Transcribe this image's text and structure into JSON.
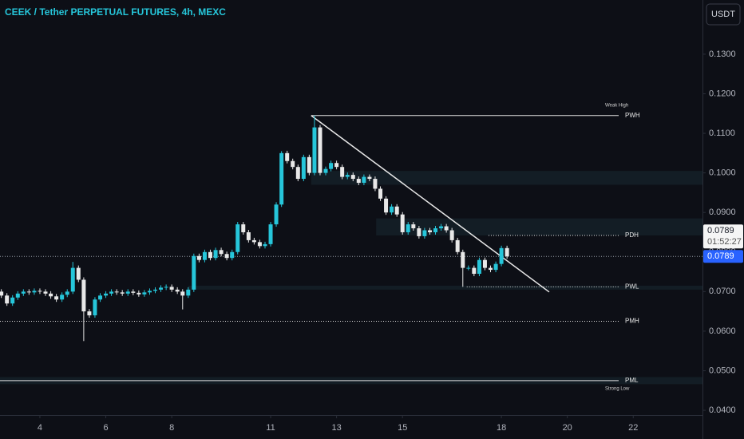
{
  "chart_data": {
    "type": "candlestick",
    "title": "CEEK / Tether PERPETUAL FUTURES, 4h, MEXC",
    "currency": "USDT",
    "up_color": "#26c6da",
    "down_color": "#e8e8e8",
    "xlim": [
      2.79,
      24.1
    ],
    "xticks": [
      4,
      6,
      8,
      11,
      13,
      15,
      18,
      20,
      22
    ],
    "ylim": [
      0.0388,
      0.1437
    ],
    "yticks": [
      {
        "value": 0.13,
        "label": "0.1300"
      },
      {
        "value": 0.12,
        "label": "0.1200"
      },
      {
        "value": 0.11,
        "label": "0.1100"
      },
      {
        "value": 0.1,
        "label": "0.1000"
      },
      {
        "value": 0.09,
        "label": "0.0900"
      },
      {
        "value": 0.08,
        "label": "0.0800"
      },
      {
        "value": 0.07,
        "label": "0.0700"
      },
      {
        "value": 0.06,
        "label": "0.0600"
      },
      {
        "value": 0.05,
        "label": "0.0500"
      },
      {
        "value": 0.04,
        "label": "0.0400"
      }
    ],
    "x": [
      2.83,
      3,
      3.17,
      3.33,
      3.5,
      3.67,
      3.83,
      4,
      4.17,
      4.33,
      4.5,
      4.67,
      4.83,
      5,
      5.17,
      5.33,
      5.5,
      5.67,
      5.83,
      6,
      6.17,
      6.33,
      6.5,
      6.67,
      6.83,
      7,
      7.17,
      7.33,
      7.5,
      7.67,
      7.83,
      8,
      8.17,
      8.33,
      8.5,
      8.67,
      8.83,
      9,
      9.17,
      9.33,
      9.5,
      9.67,
      9.83,
      10,
      10.17,
      10.33,
      10.5,
      10.67,
      10.83,
      11,
      11.17,
      11.33,
      11.5,
      11.67,
      11.83,
      12,
      12.17,
      12.33,
      12.5,
      12.67,
      12.83,
      13,
      13.17,
      13.33,
      13.5,
      13.67,
      13.83,
      14,
      14.17,
      14.33,
      14.5,
      14.67,
      14.83,
      15,
      15.17,
      15.33,
      15.5,
      15.67,
      15.83,
      16,
      16.17,
      16.33,
      16.5,
      16.67,
      16.83,
      17,
      17.17,
      17.33,
      17.5,
      17.67,
      17.83,
      18,
      18.17
    ],
    "open": [
      0.07,
      0.069,
      0.067,
      0.0685,
      0.0695,
      0.07,
      0.0698,
      0.0702,
      0.07,
      0.0695,
      0.0688,
      0.068,
      0.0692,
      0.07,
      0.076,
      0.073,
      0.065,
      0.064,
      0.068,
      0.069,
      0.0695,
      0.07,
      0.0698,
      0.0695,
      0.07,
      0.0697,
      0.0693,
      0.0698,
      0.0702,
      0.0705,
      0.071,
      0.0712,
      0.0705,
      0.07,
      0.069,
      0.0705,
      0.079,
      0.078,
      0.08,
      0.0785,
      0.0805,
      0.0795,
      0.0785,
      0.08,
      0.087,
      0.085,
      0.083,
      0.0825,
      0.0815,
      0.082,
      0.087,
      0.092,
      0.105,
      0.103,
      0.1015,
      0.0985,
      0.104,
      0.1,
      0.1115,
      0.1,
      0.101,
      0.1025,
      0.1015,
      0.099,
      0.0995,
      0.0985,
      0.0975,
      0.099,
      0.0985,
      0.096,
      0.0935,
      0.09,
      0.0915,
      0.0895,
      0.085,
      0.087,
      0.086,
      0.084,
      0.0855,
      0.085,
      0.086,
      0.0865,
      0.0855,
      0.083,
      0.08,
      0.076,
      0.076,
      0.0745,
      0.078,
      0.076,
      0.0755,
      0.077,
      0.081
    ],
    "high": [
      0.0706,
      0.0696,
      0.0691,
      0.0701,
      0.0706,
      0.0706,
      0.0708,
      0.0708,
      0.0706,
      0.0701,
      0.0694,
      0.0698,
      0.0706,
      0.0775,
      0.0766,
      0.0736,
      0.0656,
      0.0686,
      0.0696,
      0.0701,
      0.0706,
      0.0706,
      0.0704,
      0.0706,
      0.0706,
      0.0703,
      0.0704,
      0.0708,
      0.0711,
      0.0716,
      0.0718,
      0.0718,
      0.0711,
      0.0706,
      0.0711,
      0.0796,
      0.0796,
      0.0806,
      0.0806,
      0.0811,
      0.0811,
      0.0801,
      0.0806,
      0.0876,
      0.0876,
      0.0856,
      0.0836,
      0.0831,
      0.0826,
      0.0876,
      0.0926,
      0.1055,
      0.1056,
      0.1036,
      0.1021,
      0.1046,
      0.1046,
      0.1145,
      0.1121,
      0.1016,
      0.1031,
      0.1031,
      0.1021,
      0.1001,
      0.1001,
      0.0991,
      0.0996,
      0.0996,
      0.0991,
      0.0966,
      0.0941,
      0.0921,
      0.0921,
      0.0901,
      0.0876,
      0.0876,
      0.0866,
      0.0861,
      0.0861,
      0.0866,
      0.0871,
      0.0871,
      0.0861,
      0.0836,
      0.0806,
      0.0766,
      0.0766,
      0.0786,
      0.0786,
      0.0766,
      0.0776,
      0.0816,
      0.0816
    ],
    "low": [
      0.0684,
      0.0664,
      0.0664,
      0.0679,
      0.0689,
      0.0692,
      0.0692,
      0.0694,
      0.0689,
      0.0682,
      0.0674,
      0.0674,
      0.0686,
      0.0694,
      0.0724,
      0.0575,
      0.0634,
      0.0634,
      0.0674,
      0.0684,
      0.0689,
      0.0692,
      0.0689,
      0.0689,
      0.0691,
      0.0687,
      0.0687,
      0.0692,
      0.0696,
      0.0699,
      0.0704,
      0.0699,
      0.0694,
      0.0655,
      0.0684,
      0.0699,
      0.0774,
      0.0774,
      0.0779,
      0.0779,
      0.0789,
      0.0779,
      0.0779,
      0.0794,
      0.0844,
      0.0824,
      0.0819,
      0.0809,
      0.0809,
      0.0814,
      0.0864,
      0.0914,
      0.1024,
      0.1009,
      0.0979,
      0.0979,
      0.0994,
      0.0994,
      0.0994,
      0.0994,
      0.1004,
      0.1009,
      0.0984,
      0.0984,
      0.0979,
      0.0969,
      0.0969,
      0.0979,
      0.0954,
      0.0929,
      0.0894,
      0.0894,
      0.0889,
      0.0844,
      0.0844,
      0.0854,
      0.0834,
      0.0834,
      0.0844,
      0.0844,
      0.0854,
      0.0849,
      0.0824,
      0.0794,
      0.0712,
      0.0754,
      0.0739,
      0.0739,
      0.0754,
      0.0749,
      0.0749,
      0.0764,
      0.0783
    ],
    "close": [
      0.069,
      0.067,
      0.0685,
      0.0695,
      0.07,
      0.0698,
      0.0702,
      0.07,
      0.0695,
      0.0688,
      0.068,
      0.0692,
      0.07,
      0.076,
      0.073,
      0.065,
      0.064,
      0.068,
      0.069,
      0.0695,
      0.07,
      0.0698,
      0.0695,
      0.07,
      0.0697,
      0.0693,
      0.0698,
      0.0702,
      0.0705,
      0.071,
      0.0712,
      0.0705,
      0.07,
      0.069,
      0.0705,
      0.079,
      0.078,
      0.08,
      0.0785,
      0.0805,
      0.0795,
      0.0785,
      0.08,
      0.087,
      0.085,
      0.083,
      0.0825,
      0.0815,
      0.082,
      0.087,
      0.092,
      0.105,
      0.103,
      0.1015,
      0.0985,
      0.104,
      0.1,
      0.1115,
      0.1,
      0.101,
      0.1025,
      0.1015,
      0.099,
      0.0995,
      0.0985,
      0.0975,
      0.099,
      0.0985,
      0.096,
      0.0935,
      0.09,
      0.0915,
      0.0895,
      0.085,
      0.087,
      0.086,
      0.084,
      0.0855,
      0.085,
      0.086,
      0.0865,
      0.0855,
      0.083,
      0.08,
      0.076,
      0.076,
      0.0745,
      0.078,
      0.076,
      0.0755,
      0.077,
      0.081,
      0.0789
    ],
    "zones": [
      {
        "ylim": [
          0.097,
          0.1005
        ],
        "x_start": 12.23
      },
      {
        "ylim": [
          0.0842,
          0.0885
        ],
        "x_start": 14.2
      },
      {
        "ylim": [
          0.0705,
          0.0715
        ],
        "x_start": 8.5
      },
      {
        "ylim": [
          0.0466,
          0.0484
        ],
        "x_start": 2.79
      }
    ],
    "levels": [
      {
        "name": "PWH",
        "value": 0.1145,
        "x_start": 12.23,
        "style": "solid",
        "annotation": "Weak High",
        "annotation_side": "above"
      },
      {
        "name": "PDH",
        "value": 0.0842,
        "x_start": 17.61,
        "style": "dotted"
      },
      {
        "name": "PWL",
        "value": 0.0712,
        "x_start": 16.95,
        "style": "dotted"
      },
      {
        "name": "PMH",
        "value": 0.0625,
        "x_start": 2.79,
        "style": "dotted"
      },
      {
        "name": "PML",
        "value": 0.0475,
        "x_start": 2.79,
        "style": "solid",
        "annotation": "Strong Low",
        "annotation_side": "below"
      }
    ],
    "trendline": {
      "x": [
        12.23,
        19.45
      ],
      "y": [
        0.1145,
        0.0699
      ]
    },
    "last_price": {
      "value": 0.0789,
      "label": "0.0789"
    },
    "countdown": "01:52:27"
  }
}
